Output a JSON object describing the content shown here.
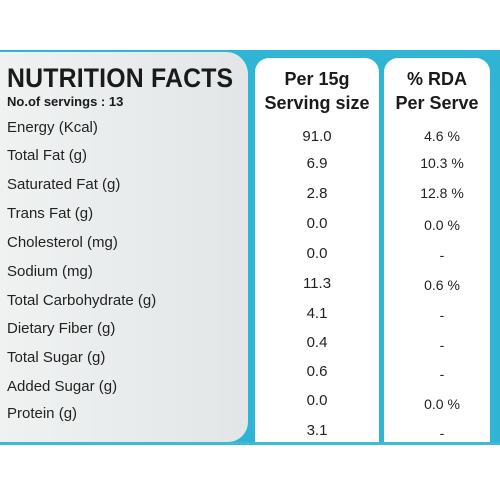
{
  "label": {
    "title": "NUTRITION FACTS",
    "servings": "No.of servings : 13",
    "col_serving": [
      "Per 15g",
      "Serving size"
    ],
    "col_rda": [
      "% RDA",
      "Per Serve"
    ]
  },
  "rows": [
    {
      "name": "Energy (Kcal)",
      "value": "91.0",
      "rda": "4.6 %"
    },
    {
      "name": "Total Fat (g)",
      "value": "6.9",
      "rda": "10.3 %"
    },
    {
      "name": "Saturated Fat (g)",
      "value": "2.8",
      "rda": "12.8 %"
    },
    {
      "name": "Trans Fat (g)",
      "value": "0.0",
      "rda": "0.0 %"
    },
    {
      "name": "Cholesterol (mg)",
      "value": "0.0",
      "rda": "-"
    },
    {
      "name": "Sodium (mg)",
      "value": "11.3",
      "rda": "0.6 %"
    },
    {
      "name": "Total Carbohydrate (g)",
      "value": "4.1",
      "rda": "-"
    },
    {
      "name": "Dietary Fiber (g)",
      "value": "0.4",
      "rda": "-"
    },
    {
      "name": "Total Sugar (g)",
      "value": "0.6",
      "rda": "-"
    },
    {
      "name": "Added Sugar (g)",
      "value": "0.0",
      "rda": "0.0 %"
    },
    {
      "name": "Protein (g)",
      "value": "3.1",
      "rda": "-"
    }
  ],
  "colors": {
    "accent": "#2fb4d4",
    "panel": "#e8ebec",
    "text": "#1a1a1a"
  }
}
